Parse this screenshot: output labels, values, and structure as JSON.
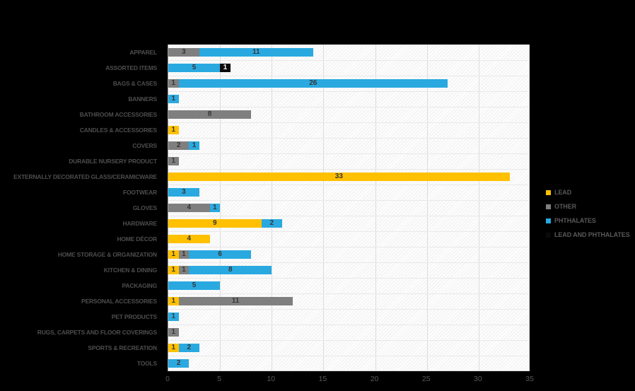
{
  "chart_data": {
    "type": "bar",
    "orientation": "horizontal",
    "stacked": true,
    "title": "",
    "xlabel": "",
    "ylabel": "",
    "xlim": [
      0,
      35
    ],
    "x_ticks": [
      0,
      5,
      10,
      15,
      20,
      25,
      30,
      35
    ],
    "grid": true,
    "legend_position": "right",
    "categories": [
      "APPAREL",
      "ASSORTED ITEMS",
      "BAGS & CASES",
      "BANNERS",
      "BATHROOM ACCESSORIES",
      "CANDLES & ACCESSORIES",
      "COVERS",
      "DURABLE NURSERY PRODUCT",
      "EXTERNALLY DECORATED GLASS/CERAMICWARE",
      "FOOTWEAR",
      "GLOVES",
      "HARDWARE",
      "HOME DÉCOR",
      "HOME STORAGE & ORGANIZATION",
      "KITCHEN & DINING",
      "PACKAGING",
      "PERSONAL ACCESSORIES",
      "PET PRODUCTS",
      "RUGS, CARPETS AND FLOOR COVERINGS",
      "SPORTS & RECREATION",
      "TOOLS"
    ],
    "series": [
      {
        "name": "LEAD",
        "color": "#FFC000",
        "values": [
          0,
          0,
          0,
          0,
          0,
          1,
          0,
          0,
          33,
          0,
          0,
          9,
          4,
          1,
          1,
          0,
          1,
          0,
          0,
          1,
          0
        ]
      },
      {
        "name": "OTHER",
        "color": "#7F7F7F",
        "values": [
          3,
          0,
          1,
          0,
          8,
          0,
          2,
          1,
          0,
          0,
          4,
          0,
          0,
          1,
          1,
          0,
          11,
          0,
          1,
          0,
          0
        ]
      },
      {
        "name": "PHTHALATES",
        "color": "#29A9E0",
        "values": [
          11,
          5,
          26,
          1,
          0,
          0,
          1,
          0,
          0,
          3,
          1,
          2,
          0,
          6,
          8,
          5,
          0,
          1,
          0,
          2,
          2
        ]
      },
      {
        "name": "LEAD AND PHTHALATES",
        "color": "#0A0A0A",
        "values": [
          0,
          1,
          0,
          0,
          0,
          0,
          0,
          0,
          0,
          0,
          0,
          0,
          0,
          0,
          0,
          0,
          0,
          0,
          0,
          0,
          0
        ]
      }
    ]
  },
  "legend": {
    "items": [
      {
        "label": "LEAD",
        "color": "#FFC000"
      },
      {
        "label": "OTHER",
        "color": "#7F7F7F"
      },
      {
        "label": "PHTHALATES",
        "color": "#29A9E0"
      },
      {
        "label": "LEAD AND PHTHALATES",
        "color": "#0A0A0A"
      }
    ]
  },
  "colors": {
    "background": "#000000",
    "plot_background": "#FDFDFD",
    "gridline": "#DCDCDC",
    "axis_line": "#9E9E9E",
    "category_label": "#4D4D4D",
    "tick_label": "#595959",
    "legend_label": "#595959",
    "value_label": "#363636",
    "value_label_on_dark": "#FFFFFF"
  }
}
